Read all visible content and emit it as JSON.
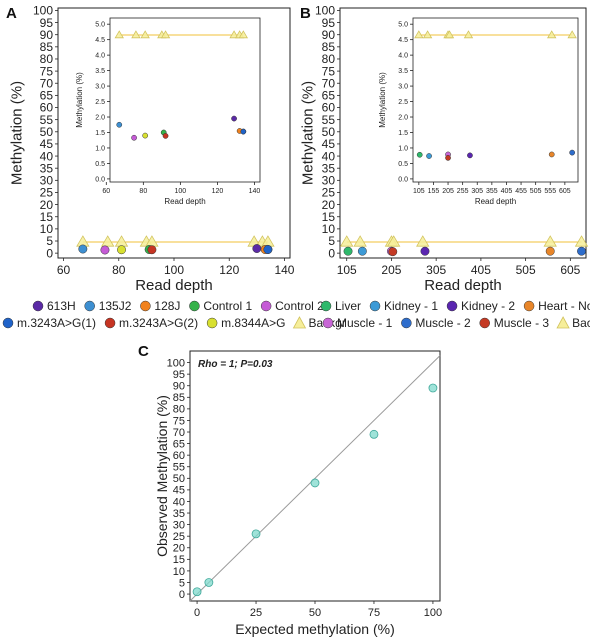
{
  "panel_labels": {
    "a": "A",
    "b": "B",
    "c": "C"
  },
  "colors": {
    "bg_line": "#f0c23a",
    "bg_marker_fill": "#f6ee9a",
    "bg_marker_stroke": "#d2c35e",
    "diag": "#9a9a9a",
    "teal": "#7fd9cc",
    "teal_stroke": "#3fa89a"
  },
  "legends": {
    "a": [
      {
        "label": "613H",
        "color": "#5b2aa6",
        "shape": "circle"
      },
      {
        "label": "135J2",
        "color": "#3d8fd1",
        "shape": "circle"
      },
      {
        "label": "128J",
        "color": "#f0821e",
        "shape": "circle"
      },
      {
        "label": "Control 1",
        "color": "#36b24a",
        "shape": "circle"
      },
      {
        "label": "Control 2",
        "color": "#c55bd6",
        "shape": "circle"
      },
      {
        "label": "m.3243A>G(1)",
        "color": "#1f63c9",
        "shape": "circle"
      },
      {
        "label": "m.3243A>G(2)",
        "color": "#c63422",
        "shape": "circle"
      },
      {
        "label": "m.8344A>G",
        "color": "#d8e030",
        "shape": "circle"
      },
      {
        "label": "Backgr",
        "color": "#f6ee9a",
        "shape": "triangle"
      }
    ],
    "b": [
      {
        "label": "Liver",
        "color": "#2fb86b",
        "shape": "circle"
      },
      {
        "label": "Kidney - 1",
        "color": "#3d9ad6",
        "shape": "circle"
      },
      {
        "label": "Kidney - 2",
        "color": "#5a26b0",
        "shape": "circle"
      },
      {
        "label": "Heart - Normal",
        "color": "#e8862a",
        "shape": "circle"
      },
      {
        "label": "Muscle - 1",
        "color": "#c866d6",
        "shape": "circle"
      },
      {
        "label": "Muscle - 2",
        "color": "#2e6dcc",
        "shape": "circle"
      },
      {
        "label": "Muscle - 3",
        "color": "#c43a24",
        "shape": "circle"
      },
      {
        "label": "Backgr",
        "color": "#f6ee9a",
        "shape": "triangle"
      }
    ]
  },
  "chart_data": [
    {
      "id": "A-main",
      "type": "scatter",
      "xlabel": "Read depth",
      "ylabel": "Methylation (%)",
      "xlim": [
        58,
        142
      ],
      "ylim": [
        -2,
        101
      ],
      "xticks": [
        60,
        80,
        100,
        120,
        140
      ],
      "yticks": [
        0,
        5,
        10,
        15,
        20,
        25,
        30,
        35,
        40,
        45,
        50,
        55,
        60,
        65,
        70,
        75,
        80,
        85,
        90,
        95,
        100
      ],
      "background_line": {
        "x": [
          67,
          134
        ],
        "y": 4.6
      },
      "series": [
        {
          "name": "Backgr",
          "marker": "triangle",
          "points": [
            [
              67,
              4.6
            ],
            [
              76,
              4.6
            ],
            [
              81,
              4.6
            ],
            [
              90,
              4.6
            ],
            [
              92,
              4.6
            ],
            [
              129,
              4.6
            ],
            [
              132,
              4.6
            ],
            [
              134,
              4.6
            ]
          ]
        },
        {
          "name": "613H",
          "points": [
            [
              130,
              1.9
            ]
          ]
        },
        {
          "name": "135J2",
          "points": [
            [
              67,
              1.7
            ],
            [
              134,
              1.5
            ]
          ]
        },
        {
          "name": "128J",
          "points": [
            [
              133,
              1.5
            ]
          ]
        },
        {
          "name": "Control 1",
          "points": [
            [
              91,
              1.5
            ]
          ]
        },
        {
          "name": "Control 2",
          "points": [
            [
              75,
              1.3
            ]
          ]
        },
        {
          "name": "m.3243A>G(1)",
          "points": [
            [
              134,
              1.5
            ]
          ]
        },
        {
          "name": "m.3243A>G(2)",
          "points": [
            [
              92,
              1.4
            ]
          ]
        },
        {
          "name": "m.8344A>G",
          "points": [
            [
              81,
              1.4
            ]
          ]
        }
      ]
    },
    {
      "id": "A-inset",
      "type": "scatter",
      "xlabel": "Read depth",
      "ylabel": "Methylation (%)",
      "xlim": [
        62,
        143
      ],
      "ylim": [
        -0.1,
        5.2
      ],
      "xticks": [
        60,
        80,
        100,
        120,
        140
      ],
      "yticks": [
        0.0,
        0.5,
        1.0,
        1.5,
        2.0,
        2.5,
        3.0,
        3.5,
        4.0,
        4.5,
        5.0
      ],
      "background_line": {
        "x": [
          67,
          134
        ],
        "y": 4.65
      },
      "series": [
        {
          "name": "Backgr",
          "marker": "triangle",
          "points": [
            [
              67,
              4.65
            ],
            [
              76,
              4.65
            ],
            [
              81,
              4.65
            ],
            [
              90,
              4.65
            ],
            [
              92,
              4.65
            ],
            [
              129,
              4.65
            ],
            [
              132,
              4.65
            ],
            [
              134,
              4.65
            ]
          ]
        },
        {
          "name": "613H",
          "points": [
            [
              129,
              1.95
            ]
          ]
        },
        {
          "name": "135J2",
          "points": [
            [
              67,
              1.75
            ],
            [
              134,
              1.53
            ]
          ]
        },
        {
          "name": "128J",
          "points": [
            [
              132,
              1.55
            ]
          ]
        },
        {
          "name": "Control 1",
          "points": [
            [
              91,
              1.5
            ]
          ]
        },
        {
          "name": "Control 2",
          "points": [
            [
              75,
              1.33
            ]
          ]
        },
        {
          "name": "m.3243A>G(1)",
          "points": [
            [
              134,
              1.53
            ]
          ]
        },
        {
          "name": "m.3243A>G(2)",
          "points": [
            [
              92,
              1.39
            ]
          ]
        },
        {
          "name": "m.8344A>G",
          "points": [
            [
              81,
              1.4
            ]
          ]
        }
      ]
    },
    {
      "id": "B-main",
      "type": "scatter",
      "xlabel": "Read depth",
      "ylabel": "Methylation (%)",
      "xlim": [
        90,
        640
      ],
      "ylim": [
        -2,
        101
      ],
      "xticks": [
        105,
        205,
        305,
        405,
        505,
        605
      ],
      "yticks": [
        0,
        5,
        10,
        15,
        20,
        25,
        30,
        35,
        40,
        45,
        50,
        55,
        60,
        65,
        70,
        75,
        80,
        85,
        90,
        95,
        100
      ],
      "background_line": {
        "x": [
          105,
          630
        ],
        "y": 4.6
      },
      "series": [
        {
          "name": "Backgr",
          "marker": "triangle",
          "points": [
            [
              105,
              4.6
            ],
            [
              135,
              4.6
            ],
            [
              205,
              4.6
            ],
            [
              210,
              4.6
            ],
            [
              275,
              4.6
            ],
            [
              560,
              4.6
            ],
            [
              630,
              4.6
            ]
          ]
        },
        {
          "name": "Liver",
          "points": [
            [
              108,
              0.8
            ]
          ]
        },
        {
          "name": "Kidney - 1",
          "points": [
            [
              140,
              0.8
            ]
          ]
        },
        {
          "name": "Kidney - 2",
          "points": [
            [
              280,
              0.8
            ]
          ]
        },
        {
          "name": "Heart - Normal",
          "points": [
            [
              560,
              0.8
            ]
          ]
        },
        {
          "name": "Muscle - 1",
          "points": [
            [
              205,
              0.8
            ]
          ]
        },
        {
          "name": "Muscle - 2",
          "points": [
            [
              630,
              0.8
            ]
          ]
        },
        {
          "name": "Muscle - 3",
          "points": [
            [
              208,
              0.6
            ]
          ]
        }
      ]
    },
    {
      "id": "B-inset",
      "type": "scatter",
      "xlabel": "Read depth",
      "ylabel": "Methylation (%)",
      "xlim": [
        85,
        650
      ],
      "ylim": [
        -0.1,
        5.2
      ],
      "xticks": [
        105,
        155,
        205,
        255,
        305,
        355,
        405,
        455,
        505,
        555,
        605
      ],
      "yticks": [
        0.0,
        0.5,
        1.0,
        1.5,
        2.0,
        2.5,
        3.0,
        3.5,
        4.0,
        4.5,
        5.0
      ],
      "background_line": {
        "x": [
          105,
          630
        ],
        "y": 4.65
      },
      "series": [
        {
          "name": "Backgr",
          "marker": "triangle",
          "points": [
            [
              105,
              4.65
            ],
            [
              135,
              4.65
            ],
            [
              205,
              4.65
            ],
            [
              210,
              4.65
            ],
            [
              275,
              4.65
            ],
            [
              560,
              4.65
            ],
            [
              630,
              4.65
            ]
          ]
        },
        {
          "name": "Liver",
          "points": [
            [
              108,
              0.78
            ]
          ]
        },
        {
          "name": "Kidney - 1",
          "points": [
            [
              140,
              0.74
            ]
          ]
        },
        {
          "name": "Kidney - 2",
          "points": [
            [
              280,
              0.76
            ]
          ]
        },
        {
          "name": "Heart - Normal",
          "points": [
            [
              560,
              0.79
            ]
          ]
        },
        {
          "name": "Muscle - 1",
          "points": [
            [
              205,
              0.79
            ]
          ]
        },
        {
          "name": "Muscle - 2",
          "points": [
            [
              630,
              0.85
            ]
          ]
        },
        {
          "name": "Muscle - 3",
          "points": [
            [
              205,
              0.68
            ]
          ]
        }
      ]
    },
    {
      "id": "C",
      "type": "scatter",
      "xlabel": "Expected methylation (%)",
      "ylabel": "Observed Methylation (%)",
      "xlim": [
        -3,
        103
      ],
      "ylim": [
        -3,
        105
      ],
      "xticks": [
        0,
        25,
        50,
        75,
        100
      ],
      "yticks": [
        0,
        5,
        10,
        15,
        20,
        25,
        30,
        35,
        40,
        45,
        50,
        55,
        60,
        65,
        70,
        75,
        80,
        85,
        90,
        95,
        100
      ],
      "annotation": "Rho = 1; P=0.03",
      "diagonal": true,
      "series": [
        {
          "points": [
            [
              0,
              1
            ],
            [
              5,
              5
            ],
            [
              25,
              26
            ],
            [
              50,
              48
            ],
            [
              75,
              69
            ],
            [
              100,
              89
            ]
          ]
        }
      ]
    }
  ]
}
